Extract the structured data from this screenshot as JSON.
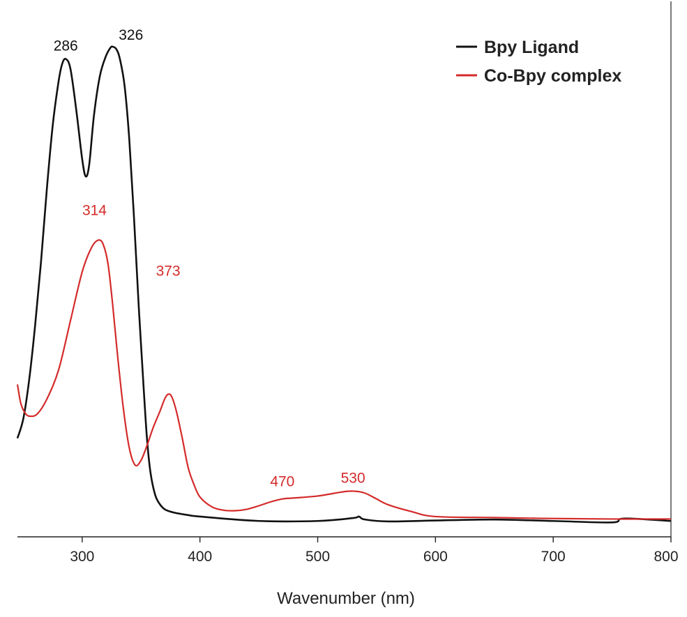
{
  "chart_data": {
    "type": "line",
    "title": "",
    "xlabel": "Wavenumber (nm)",
    "ylabel": "",
    "xlim": [
      245,
      800
    ],
    "ylim": [
      0,
      1.0
    ],
    "x_ticks": [
      300,
      400,
      500,
      600,
      700,
      800
    ],
    "grid": false,
    "legend": {
      "position": "top-right",
      "entries": [
        {
          "label": "Bpy Ligand",
          "color": "#111111"
        },
        {
          "label": "Co-Bpy complex",
          "color": "#d42a2a"
        }
      ]
    },
    "series": [
      {
        "name": "Bpy Ligand",
        "color": "#111111",
        "x": [
          245,
          250,
          255,
          260,
          265,
          270,
          275,
          280,
          283,
          286,
          290,
          295,
          300,
          303,
          306,
          310,
          315,
          320,
          324,
          326,
          329,
          332,
          336,
          340,
          344,
          348,
          352,
          355,
          358,
          362,
          366,
          370,
          375,
          380,
          390,
          400,
          450,
          500,
          530,
          535,
          540,
          560,
          600,
          650,
          700,
          750,
          760,
          800
        ],
        "y": [
          0.19,
          0.23,
          0.31,
          0.42,
          0.55,
          0.7,
          0.83,
          0.92,
          0.955,
          0.965,
          0.945,
          0.86,
          0.76,
          0.725,
          0.75,
          0.85,
          0.93,
          0.97,
          0.988,
          0.99,
          0.985,
          0.965,
          0.91,
          0.8,
          0.64,
          0.46,
          0.3,
          0.19,
          0.12,
          0.074,
          0.055,
          0.045,
          0.04,
          0.037,
          0.033,
          0.03,
          0.021,
          0.021,
          0.027,
          0.03,
          0.024,
          0.02,
          0.022,
          0.024,
          0.021,
          0.018,
          0.026,
          0.021
        ]
      },
      {
        "name": "Co-Bpy complex",
        "color": "#d42a2a",
        "x": [
          245,
          248,
          252,
          256,
          262,
          270,
          280,
          290,
          300,
          308,
          314,
          318,
          322,
          326,
          330,
          335,
          340,
          345,
          350,
          355,
          360,
          366,
          370,
          373,
          376,
          380,
          385,
          390,
          395,
          400,
          410,
          420,
          430,
          440,
          450,
          460,
          470,
          480,
          500,
          520,
          530,
          540,
          550,
          560,
          580,
          600,
          650,
          700,
          750,
          800
        ],
        "y": [
          0.3,
          0.26,
          0.24,
          0.235,
          0.24,
          0.27,
          0.33,
          0.43,
          0.53,
          0.58,
          0.595,
          0.585,
          0.545,
          0.46,
          0.36,
          0.25,
          0.17,
          0.135,
          0.145,
          0.175,
          0.21,
          0.245,
          0.27,
          0.28,
          0.275,
          0.245,
          0.19,
          0.13,
          0.095,
          0.07,
          0.05,
          0.043,
          0.042,
          0.045,
          0.052,
          0.06,
          0.066,
          0.068,
          0.072,
          0.08,
          0.082,
          0.078,
          0.066,
          0.054,
          0.04,
          0.03,
          0.028,
          0.026,
          0.025,
          0.025
        ]
      }
    ],
    "annotations": [
      {
        "text": "286",
        "series": "Bpy Ligand",
        "color": "#111111"
      },
      {
        "text": "326",
        "series": "Bpy Ligand",
        "color": "#111111"
      },
      {
        "text": "314",
        "series": "Co-Bpy complex",
        "color": "#d42a2a"
      },
      {
        "text": "373",
        "series": "Co-Bpy complex",
        "color": "#d42a2a"
      },
      {
        "text": "470",
        "series": "Co-Bpy complex",
        "color": "#d42a2a"
      },
      {
        "text": "530",
        "series": "Co-Bpy complex",
        "color": "#d42a2a"
      }
    ]
  }
}
